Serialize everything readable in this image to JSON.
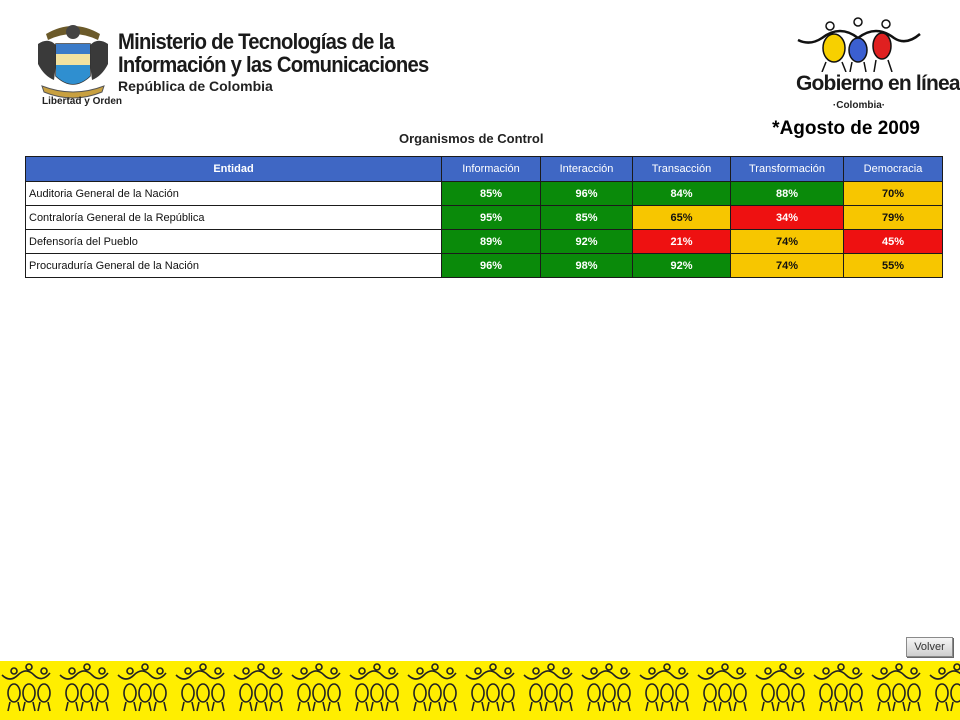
{
  "header": {
    "ministry": {
      "line1": "Ministerio de Tecnologías de la",
      "line2": "Información y las Comunicaciones",
      "subtitle": "República de Colombia",
      "motto": "Libertad y Orden"
    },
    "gel_logo": {
      "title": "Gobierno en línea",
      "subtitle": "·Colombia·"
    },
    "date": "*Agosto de 2009"
  },
  "section_title": "Organismos de Control",
  "table": {
    "columns": [
      "Entidad",
      "Información",
      "Interacción",
      "Transacción",
      "Transformación",
      "Democracia"
    ],
    "rows": [
      {
        "entity": "Auditoria General  de la Nación",
        "values": [
          "85%",
          "96%",
          "84%",
          "88%",
          "70%"
        ],
        "colors": [
          "green",
          "green",
          "green",
          "green",
          "yellow"
        ]
      },
      {
        "entity": "Contraloría General  de la República",
        "values": [
          "95%",
          "85%",
          "65%",
          "34%",
          "79%"
        ],
        "colors": [
          "green",
          "green",
          "yellow",
          "red",
          "yellow"
        ]
      },
      {
        "entity": "Defensoría del Pueblo",
        "values": [
          "89%",
          "92%",
          "21%",
          "74%",
          "45%"
        ],
        "colors": [
          "green",
          "green",
          "red",
          "yellow",
          "red"
        ]
      },
      {
        "entity": "Procuraduría General  de la Nación",
        "values": [
          "96%",
          "98%",
          "92%",
          "74%",
          "55%"
        ],
        "colors": [
          "green",
          "green",
          "green",
          "yellow",
          "yellow"
        ]
      }
    ]
  },
  "colors": {
    "header_bg": "#3f67c4",
    "green": "#0a8a0a",
    "yellow": "#f7c600",
    "red": "#ee1111",
    "footer_bg": "#ffee00"
  },
  "buttons": {
    "back_label": "Volver"
  },
  "icons": {
    "coat_of_arms": "colombia-coat-of-arms-icon",
    "gel_figures": "three-people-figures-icon",
    "footer_pattern": "people-figures-pattern-icon"
  }
}
